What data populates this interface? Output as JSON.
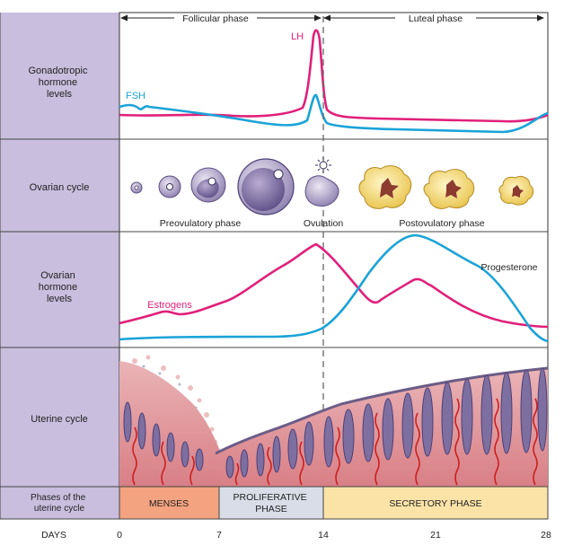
{
  "phases": {
    "follicular": "Follicular phase",
    "luteal": "Luteal phase"
  },
  "rows": {
    "gonadotropic": [
      "Gonadotropic",
      "hormone",
      "levels"
    ],
    "ovarian_cycle": [
      "Ovarian cycle"
    ],
    "ovarian_hormone": [
      "Ovarian",
      "hormone",
      "levels"
    ],
    "uterine_cycle": [
      "Uterine cycle"
    ],
    "phases_of_uterine": [
      "Phases of the",
      "uterine cycle"
    ]
  },
  "labels": {
    "lh": "LH",
    "fsh": "FSH",
    "estrogens": "Estrogens",
    "progesterone": "Progesterone",
    "preovulatory": "Preovulatory phase",
    "ovulation": "Ovulation",
    "postovulatory": "Postovulatory phase"
  },
  "uterine_phases": {
    "menses": [
      "MENSES"
    ],
    "proliferative": [
      "PROLIFERATIVE",
      "PHASE"
    ],
    "secretory": [
      "SECRETORY PHASE"
    ]
  },
  "axis": {
    "label": "DAYS",
    "ticks": [
      "0",
      "7",
      "14",
      "21",
      "28"
    ]
  },
  "colors": {
    "lh": "#e0207a",
    "fsh": "#1aa3d8",
    "estrogens": "#e0207a",
    "progesterone": "#1aa3d8",
    "sidebar": "#c9bedd",
    "menses": "#f3a37f",
    "proliferative": "#d8dde7",
    "secretory": "#fbe3a7"
  }
}
